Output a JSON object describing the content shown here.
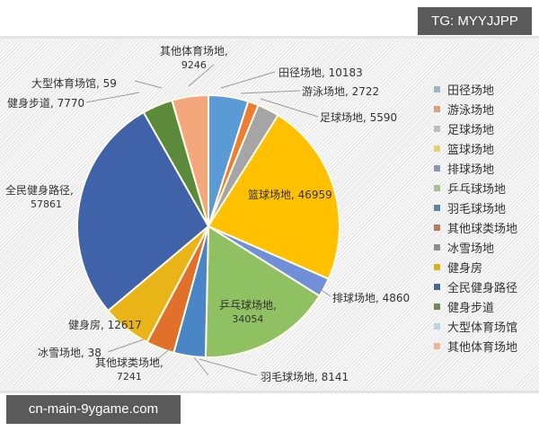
{
  "watermarks": {
    "top": "TG: MYYJJPP",
    "bottom": "cn-main-9ygame.com"
  },
  "chart_data": {
    "type": "pie",
    "title": "",
    "legend_position": "right",
    "categories": [
      "田径场地",
      "游泳场地",
      "足球场地",
      "篮球场地",
      "排球场地",
      "乒乓球场地",
      "羽毛球场地",
      "其他球类场地",
      "冰雪场地",
      "健身房",
      "全民健身路径",
      "健身步道",
      "大型体育场馆",
      "其他体育场地"
    ],
    "values": [
      10183,
      2722,
      5590,
      46959,
      4860,
      34054,
      8141,
      7241,
      38,
      12617,
      57861,
      7770,
      59,
      9246
    ],
    "colors": [
      "#5b9bd5",
      "#ed7d31",
      "#a5a5a5",
      "#ffc000",
      "#6f8fd8",
      "#8fc062",
      "#4a86c5",
      "#e0702a",
      "#9a9a9a",
      "#e8b418",
      "#3f62a8",
      "#5a8a3a",
      "#9dc3e6",
      "#f4a77a"
    ]
  },
  "labels": [
    {
      "name": "田径场地",
      "value": "10183",
      "text": "田径场地, 10183"
    },
    {
      "name": "游泳场地",
      "value": "2722",
      "text": "游泳场地, 2722"
    },
    {
      "name": "足球场地",
      "value": "5590",
      "text": "足球场地, 5590"
    },
    {
      "name": "篮球场地",
      "value": "46959",
      "text": "篮球场地, 46959"
    },
    {
      "name": "排球场地",
      "value": "4860",
      "text": "排球场地, 4860"
    },
    {
      "name": "乒乓球场地",
      "value": "34054",
      "line1": "乒乓球场地,",
      "line2": "34054"
    },
    {
      "name": "羽毛球场地",
      "value": "8141",
      "text": "羽毛球场地, 8141"
    },
    {
      "name": "其他球类场地",
      "value": "7241",
      "line1": "其他球类场地,",
      "line2": "7241"
    },
    {
      "name": "冰雪场地",
      "value": "38",
      "text": "冰雪场地, 38"
    },
    {
      "name": "健身房",
      "value": "12617",
      "text": "健身房, 12617"
    },
    {
      "name": "全民健身路径",
      "value": "57861",
      "line1": "全民健身路径,",
      "line2": "57861"
    },
    {
      "name": "健身步道",
      "value": "7770",
      "text": "健身步道, 7770"
    },
    {
      "name": "大型体育场馆",
      "value": "59",
      "text": "大型体育场馆, 59"
    },
    {
      "name": "其他体育场地",
      "value": "9246",
      "line1": "其他体育场地,",
      "line2": "9246"
    }
  ],
  "legend": [
    {
      "label": "田径场地",
      "color": "#5b9bd5"
    },
    {
      "label": "游泳场地",
      "color": "#ed7d31"
    },
    {
      "label": "足球场地",
      "color": "#a5a5a5"
    },
    {
      "label": "篮球场地",
      "color": "#ffc000"
    },
    {
      "label": "排球场地",
      "color": "#6f8fd8"
    },
    {
      "label": "乒乓球场地",
      "color": "#8fc062"
    },
    {
      "label": "羽毛球场地",
      "color": "#4a86c5"
    },
    {
      "label": "其他球类场地",
      "color": "#e0702a"
    },
    {
      "label": "冰雪场地",
      "color": "#9a9a9a"
    },
    {
      "label": "健身房",
      "color": "#e8b418"
    },
    {
      "label": "全民健身路径",
      "color": "#3f62a8"
    },
    {
      "label": "健身步道",
      "color": "#5a8a3a"
    },
    {
      "label": "大型体育场馆",
      "color": "#9dc3e6"
    },
    {
      "label": "其他体育场地",
      "color": "#f4a77a"
    }
  ]
}
